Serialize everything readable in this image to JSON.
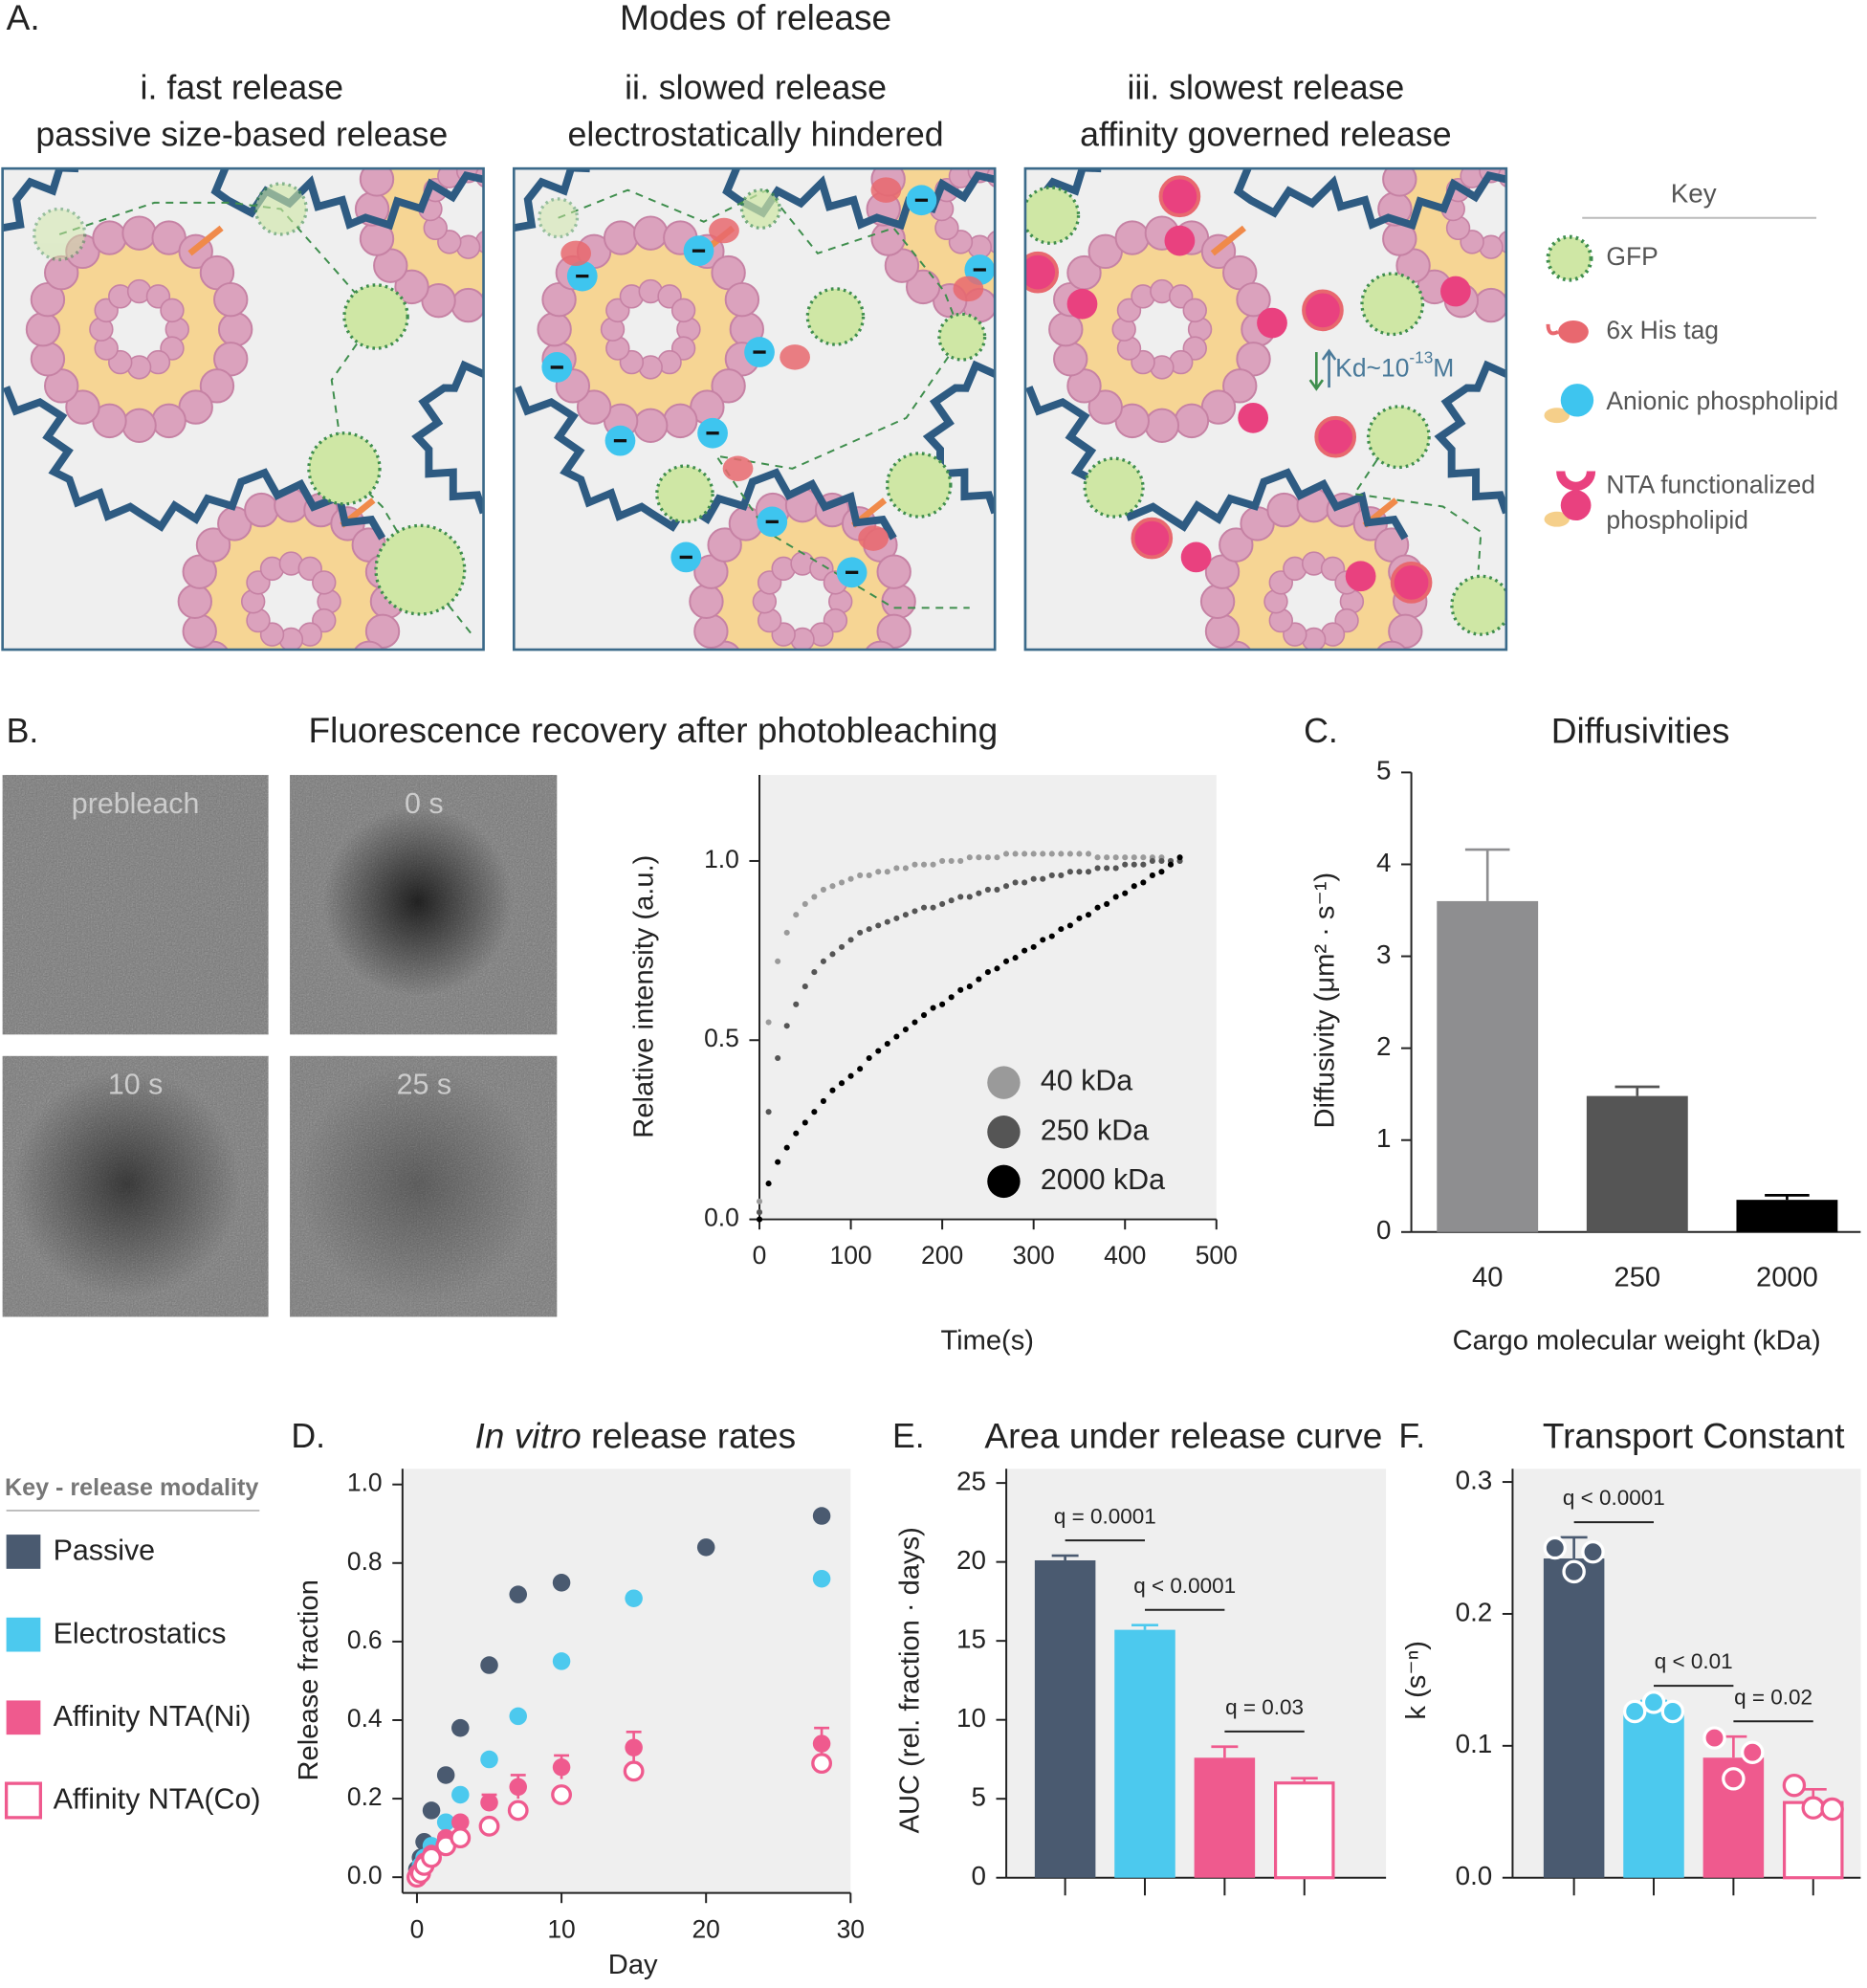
{
  "panel_a": {
    "label": "A.",
    "title": "Modes of release",
    "modes": [
      {
        "title": "i. fast release",
        "subtitle": "passive size-based release"
      },
      {
        "title": "ii. slowed release",
        "subtitle": "electrostatically hindered"
      },
      {
        "title": "iii. slowest release",
        "subtitle": "affinity governed release"
      }
    ],
    "kd": {
      "text": "Kd~10",
      "exponent": "-13",
      "unit": "M"
    },
    "key": {
      "title": "Key",
      "items": [
        [
          "GFP"
        ],
        [
          "6x His tag"
        ],
        [
          "Anionic phospholipid"
        ],
        [
          "NTA functionalized",
          "phospholipid"
        ]
      ]
    }
  },
  "panel_b": {
    "label": "B.",
    "title": "Fluorescence recovery after photobleaching",
    "images": [
      "prebleach",
      "0 s",
      "10 s",
      "25 s"
    ]
  },
  "release_key_title": "Key - release modality",
  "chart_data": [
    {
      "type": "scatter",
      "x_label": "Time(s)",
      "y_label": "Relative intensity (a.u.)",
      "legend": "lower right",
      "xlim": [
        0,
        500
      ],
      "xticks": [
        0,
        100,
        200,
        300,
        400,
        500
      ],
      "ylim": [
        0,
        1.24
      ],
      "yticks": [
        {
          "value": 0,
          "label": "0.0"
        },
        {
          "value": 0.5,
          "label": "0.5"
        },
        {
          "value": 1,
          "label": "1.0"
        }
      ],
      "x": [
        0,
        10,
        20,
        30,
        40,
        50,
        60,
        70,
        80,
        90,
        100,
        110,
        120,
        130,
        140,
        150,
        160,
        170,
        180,
        190,
        200,
        210,
        220,
        230,
        240,
        250,
        260,
        270,
        280,
        290,
        300,
        310,
        320,
        330,
        340,
        350,
        360,
        370,
        380,
        390,
        400,
        410,
        420,
        430,
        440,
        450,
        460
      ],
      "series": [
        {
          "name": "40 kDa",
          "color": "#9a9a9a",
          "values": [
            0.05,
            0.55,
            0.72,
            0.8,
            0.85,
            0.88,
            0.9,
            0.92,
            0.93,
            0.94,
            0.95,
            0.96,
            0.96,
            0.97,
            0.97,
            0.98,
            0.98,
            0.99,
            0.99,
            0.99,
            1.0,
            1.0,
            1.0,
            1.01,
            1.01,
            1.01,
            1.01,
            1.02,
            1.02,
            1.02,
            1.02,
            1.02,
            1.02,
            1.02,
            1.02,
            1.02,
            1.02,
            1.01,
            1.01,
            1.01,
            1.01,
            1.01,
            1.01,
            1.01,
            1.01,
            1.0,
            1.0
          ]
        },
        {
          "name": "250 kDa",
          "color": "#555555",
          "values": [
            0.02,
            0.3,
            0.45,
            0.54,
            0.6,
            0.65,
            0.69,
            0.72,
            0.74,
            0.76,
            0.78,
            0.8,
            0.81,
            0.82,
            0.83,
            0.84,
            0.85,
            0.86,
            0.87,
            0.87,
            0.88,
            0.89,
            0.9,
            0.9,
            0.91,
            0.92,
            0.92,
            0.93,
            0.94,
            0.94,
            0.95,
            0.95,
            0.96,
            0.96,
            0.97,
            0.97,
            0.97,
            0.98,
            0.98,
            0.98,
            0.99,
            0.99,
            0.99,
            1.0,
            1.0,
            1.0,
            1.0
          ]
        },
        {
          "name": "2000 kDa",
          "color": "#000000",
          "values": [
            0.0,
            0.1,
            0.16,
            0.2,
            0.24,
            0.27,
            0.3,
            0.33,
            0.36,
            0.38,
            0.4,
            0.42,
            0.45,
            0.47,
            0.49,
            0.51,
            0.53,
            0.55,
            0.57,
            0.59,
            0.6,
            0.62,
            0.64,
            0.65,
            0.67,
            0.69,
            0.7,
            0.72,
            0.73,
            0.75,
            0.76,
            0.78,
            0.79,
            0.81,
            0.82,
            0.84,
            0.85,
            0.87,
            0.88,
            0.9,
            0.91,
            0.93,
            0.94,
            0.96,
            0.97,
            0.99,
            1.01
          ]
        }
      ]
    },
    {
      "type": "bar",
      "panel": "C.",
      "title": "Diffusivities",
      "x_label": "Cargo molecular weight (kDa)",
      "y_label": "Diffusivity (μm² · s⁻¹)",
      "categories": [
        "40",
        "250",
        "2000"
      ],
      "values": [
        3.6,
        1.48,
        0.35
      ],
      "errors": [
        0.56,
        0.1,
        0.05
      ],
      "colors": [
        "#8e8e90",
        "#555555",
        "#000000"
      ],
      "bar_fill": [
        "solid",
        "solid",
        "solid"
      ],
      "ylim": [
        0,
        5
      ],
      "yticks": [
        0,
        1,
        2,
        3,
        4,
        5
      ]
    },
    {
      "type": "scatter",
      "panel": "D.",
      "title_italic": "In vitro",
      "title": "release rates",
      "x_label": "Day",
      "y_label": "Release fraction",
      "legend": "outside left",
      "xlim": [
        -1,
        30
      ],
      "xticks": [
        0,
        10,
        20,
        30
      ],
      "ylim": [
        -0.04,
        1.04
      ],
      "yticks": [
        {
          "value": 0,
          "label": "0.0"
        },
        {
          "value": 0.2,
          "label": "0.2"
        },
        {
          "value": 0.4,
          "label": "0.4"
        },
        {
          "value": 0.6,
          "label": "0.6"
        },
        {
          "value": 0.8,
          "label": "0.8"
        },
        {
          "value": 1,
          "label": "1.0"
        }
      ],
      "series": [
        {
          "name": "Passive",
          "color": "#4a5a70",
          "marker": "filled",
          "x": [
            0,
            0.25,
            0.5,
            1,
            2,
            3,
            5,
            7,
            10,
            20,
            28
          ],
          "values": [
            0.02,
            0.05,
            0.09,
            0.17,
            0.26,
            0.38,
            0.54,
            0.72,
            0.75,
            0.84,
            0.92
          ]
        },
        {
          "name": "Electrostatics",
          "color": "#4cc9ee",
          "marker": "filled",
          "x": [
            0,
            0.25,
            0.5,
            1,
            2,
            3,
            5,
            7,
            10,
            15,
            28
          ],
          "values": [
            0.01,
            0.03,
            0.05,
            0.08,
            0.14,
            0.21,
            0.3,
            0.41,
            0.55,
            0.71,
            0.76
          ]
        },
        {
          "name": "Affinity NTA(Ni)",
          "color": "#ef5a8e",
          "marker": "filled",
          "x": [
            0,
            0.25,
            0.5,
            1,
            2,
            3,
            5,
            7,
            10,
            15,
            28
          ],
          "values": [
            0.01,
            0.02,
            0.04,
            0.06,
            0.1,
            0.14,
            0.19,
            0.23,
            0.28,
            0.33,
            0.34
          ],
          "errors": [
            0,
            0,
            0,
            0.01,
            0.01,
            0.01,
            0.02,
            0.03,
            0.03,
            0.04,
            0.04
          ]
        },
        {
          "name": "Affinity NTA(Co)",
          "color": "#ef5a8e",
          "marker": "open",
          "x": [
            0,
            0.25,
            0.5,
            1,
            2,
            3,
            5,
            7,
            10,
            15,
            28
          ],
          "values": [
            0.0,
            0.01,
            0.03,
            0.05,
            0.08,
            0.1,
            0.13,
            0.17,
            0.21,
            0.27,
            0.29
          ]
        }
      ]
    },
    {
      "type": "bar",
      "panel": "E.",
      "title": "Area under release curve",
      "y_label": "AUC (rel. fraction · days)",
      "categories": [
        null,
        null,
        null,
        null
      ],
      "values": [
        20.1,
        15.7,
        7.6,
        6.0
      ],
      "errors": [
        0.3,
        0.3,
        0.7,
        0.3
      ],
      "colors": [
        "#4a5a70",
        "#4cc9ee",
        "#ef5a8e",
        "#ef5a8e"
      ],
      "bar_fill": [
        "solid",
        "solid",
        "solid",
        "open"
      ],
      "ylim": [
        0,
        25.9
      ],
      "yticks": [
        0,
        5,
        10,
        15,
        20,
        25
      ],
      "comparisons": [
        {
          "label": "q = 0.0001",
          "bars": [
            0,
            1
          ]
        },
        {
          "label": "q < 0.0001",
          "bars": [
            1,
            2
          ]
        },
        {
          "label": "q = 0.03",
          "bars": [
            2,
            3
          ]
        }
      ]
    },
    {
      "type": "bar",
      "panel": "F.",
      "title": "Transport Constant",
      "y_label": "k (s⁻ⁿ)",
      "categories": [
        null,
        null,
        null,
        null
      ],
      "values": [
        0.242,
        0.128,
        0.091,
        0.057
      ],
      "errors": [
        0.016,
        0.006,
        0.016,
        0.01
      ],
      "points": [
        [
          0.25,
          0.232,
          0.247
        ],
        [
          0.126,
          0.133,
          0.126
        ],
        [
          0.106,
          0.075,
          0.095
        ],
        [
          0.07,
          0.053,
          0.052
        ]
      ],
      "colors": [
        "#4a5a70",
        "#4cc9ee",
        "#ef5a8e",
        "#ef5a8e"
      ],
      "bar_fill": [
        "solid",
        "solid",
        "solid",
        "open"
      ],
      "ylim": [
        0,
        0.31
      ],
      "yticks": [
        {
          "value": 0,
          "label": "0.0"
        },
        {
          "value": 0.1,
          "label": "0.1"
        },
        {
          "value": 0.2,
          "label": "0.2"
        },
        {
          "value": 0.3,
          "label": "0.3"
        }
      ],
      "comparisons": [
        {
          "label": "q < 0.0001",
          "bars": [
            0,
            1
          ]
        },
        {
          "label": "q < 0.01",
          "bars": [
            1,
            2
          ]
        },
        {
          "label": "q = 0.02",
          "bars": [
            2,
            3
          ]
        }
      ]
    }
  ]
}
